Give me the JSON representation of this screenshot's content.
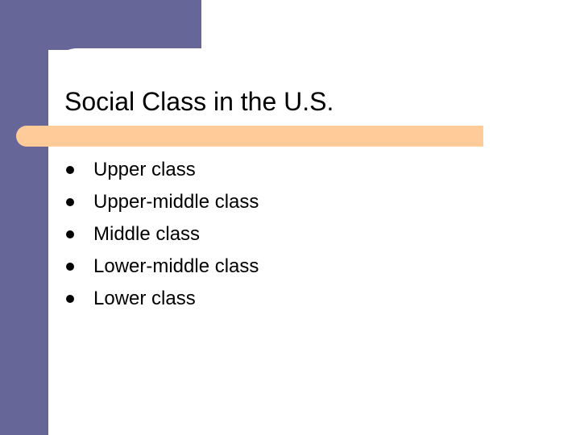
{
  "slide": {
    "title": "Social Class in the U.S.",
    "bullets": [
      "Upper class",
      "Upper-middle class",
      "Middle class",
      "Lower-middle class",
      "Lower class"
    ]
  },
  "colors": {
    "sidebar": "#666699",
    "accent_bar": "#ffcc99",
    "background": "#ffffff",
    "text": "#000000"
  }
}
